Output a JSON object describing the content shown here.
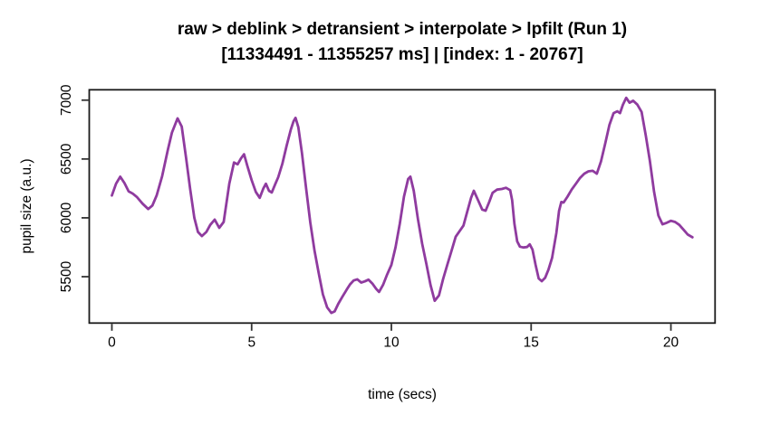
{
  "page": {
    "background": "#ffffff"
  },
  "chart_data": {
    "type": "line",
    "title_line1": "raw > deblink > detransient > interpolate > lpfilt (Run 1)",
    "title_line2": "[11334491 - 11355257 ms] | [index: 1 - 20767]",
    "xlabel": "time (secs)",
    "ylabel": "pupil size (a.u.)",
    "x_ticks": [
      0,
      5,
      10,
      15,
      20
    ],
    "y_ticks": [
      5500,
      6000,
      6500,
      7000
    ],
    "x_range": [
      -0.81,
      21.58
    ],
    "y_range": [
      5106,
      7088
    ],
    "grid": false,
    "legend": "none",
    "line_color": "#8f3b9f",
    "axis_color": "#1a1a1a",
    "series": [
      {
        "name": "pupil size (a.u.)",
        "points": [
          [
            0.0,
            6190
          ],
          [
            0.15,
            6290
          ],
          [
            0.3,
            6350
          ],
          [
            0.45,
            6295
          ],
          [
            0.6,
            6225
          ],
          [
            0.75,
            6205
          ],
          [
            0.9,
            6175
          ],
          [
            1.1,
            6120
          ],
          [
            1.3,
            6075
          ],
          [
            1.45,
            6105
          ],
          [
            1.6,
            6190
          ],
          [
            1.8,
            6355
          ],
          [
            2.0,
            6575
          ],
          [
            2.15,
            6725
          ],
          [
            2.35,
            6845
          ],
          [
            2.5,
            6775
          ],
          [
            2.65,
            6515
          ],
          [
            2.8,
            6245
          ],
          [
            2.95,
            6000
          ],
          [
            3.08,
            5880
          ],
          [
            3.22,
            5845
          ],
          [
            3.38,
            5880
          ],
          [
            3.52,
            5940
          ],
          [
            3.68,
            5985
          ],
          [
            3.84,
            5915
          ],
          [
            4.0,
            5965
          ],
          [
            4.2,
            6290
          ],
          [
            4.37,
            6470
          ],
          [
            4.5,
            6455
          ],
          [
            4.62,
            6505
          ],
          [
            4.73,
            6540
          ],
          [
            4.85,
            6440
          ],
          [
            5.0,
            6320
          ],
          [
            5.15,
            6220
          ],
          [
            5.29,
            6170
          ],
          [
            5.42,
            6250
          ],
          [
            5.51,
            6290
          ],
          [
            5.62,
            6230
          ],
          [
            5.72,
            6215
          ],
          [
            5.85,
            6290
          ],
          [
            5.95,
            6345
          ],
          [
            6.1,
            6460
          ],
          [
            6.25,
            6610
          ],
          [
            6.4,
            6750
          ],
          [
            6.5,
            6820
          ],
          [
            6.57,
            6850
          ],
          [
            6.67,
            6770
          ],
          [
            6.8,
            6550
          ],
          [
            6.95,
            6250
          ],
          [
            7.1,
            5960
          ],
          [
            7.25,
            5720
          ],
          [
            7.4,
            5530
          ],
          [
            7.55,
            5350
          ],
          [
            7.7,
            5240
          ],
          [
            7.85,
            5192
          ],
          [
            7.97,
            5205
          ],
          [
            8.1,
            5270
          ],
          [
            8.25,
            5330
          ],
          [
            8.4,
            5390
          ],
          [
            8.52,
            5435
          ],
          [
            8.65,
            5468
          ],
          [
            8.78,
            5478
          ],
          [
            8.92,
            5450
          ],
          [
            9.05,
            5460
          ],
          [
            9.18,
            5475
          ],
          [
            9.32,
            5442
          ],
          [
            9.45,
            5398
          ],
          [
            9.56,
            5370
          ],
          [
            9.7,
            5430
          ],
          [
            9.85,
            5520
          ],
          [
            10.0,
            5600
          ],
          [
            10.15,
            5750
          ],
          [
            10.3,
            5950
          ],
          [
            10.45,
            6180
          ],
          [
            10.6,
            6330
          ],
          [
            10.68,
            6350
          ],
          [
            10.8,
            6230
          ],
          [
            10.95,
            5990
          ],
          [
            11.1,
            5780
          ],
          [
            11.25,
            5610
          ],
          [
            11.4,
            5430
          ],
          [
            11.55,
            5295
          ],
          [
            11.7,
            5340
          ],
          [
            11.85,
            5480
          ],
          [
            12.0,
            5600
          ],
          [
            12.15,
            5720
          ],
          [
            12.3,
            5840
          ],
          [
            12.45,
            5890
          ],
          [
            12.58,
            5935
          ],
          [
            12.7,
            6040
          ],
          [
            12.85,
            6170
          ],
          [
            12.95,
            6230
          ],
          [
            13.1,
            6150
          ],
          [
            13.25,
            6070
          ],
          [
            13.37,
            6060
          ],
          [
            13.5,
            6135
          ],
          [
            13.62,
            6212
          ],
          [
            13.78,
            6240
          ],
          [
            13.95,
            6245
          ],
          [
            14.1,
            6255
          ],
          [
            14.25,
            6235
          ],
          [
            14.32,
            6150
          ],
          [
            14.4,
            5950
          ],
          [
            14.5,
            5800
          ],
          [
            14.6,
            5755
          ],
          [
            14.72,
            5748
          ],
          [
            14.85,
            5752
          ],
          [
            14.95,
            5775
          ],
          [
            15.05,
            5730
          ],
          [
            15.16,
            5600
          ],
          [
            15.27,
            5485
          ],
          [
            15.38,
            5462
          ],
          [
            15.5,
            5490
          ],
          [
            15.62,
            5560
          ],
          [
            15.75,
            5660
          ],
          [
            15.9,
            5870
          ],
          [
            16.0,
            6060
          ],
          [
            16.08,
            6135
          ],
          [
            16.16,
            6130
          ],
          [
            16.3,
            6180
          ],
          [
            16.45,
            6240
          ],
          [
            16.6,
            6290
          ],
          [
            16.75,
            6340
          ],
          [
            16.9,
            6375
          ],
          [
            17.05,
            6395
          ],
          [
            17.2,
            6400
          ],
          [
            17.35,
            6375
          ],
          [
            17.5,
            6480
          ],
          [
            17.65,
            6630
          ],
          [
            17.8,
            6790
          ],
          [
            17.95,
            6890
          ],
          [
            18.08,
            6905
          ],
          [
            18.18,
            6890
          ],
          [
            18.28,
            6960
          ],
          [
            18.4,
            7020
          ],
          [
            18.52,
            6978
          ],
          [
            18.65,
            6995
          ],
          [
            18.8,
            6962
          ],
          [
            18.95,
            6900
          ],
          [
            19.1,
            6700
          ],
          [
            19.25,
            6480
          ],
          [
            19.4,
            6220
          ],
          [
            19.55,
            6020
          ],
          [
            19.7,
            5945
          ],
          [
            19.85,
            5958
          ],
          [
            20.0,
            5975
          ],
          [
            20.15,
            5965
          ],
          [
            20.3,
            5940
          ],
          [
            20.45,
            5900
          ],
          [
            20.6,
            5858
          ],
          [
            20.77,
            5835
          ]
        ]
      }
    ]
  }
}
